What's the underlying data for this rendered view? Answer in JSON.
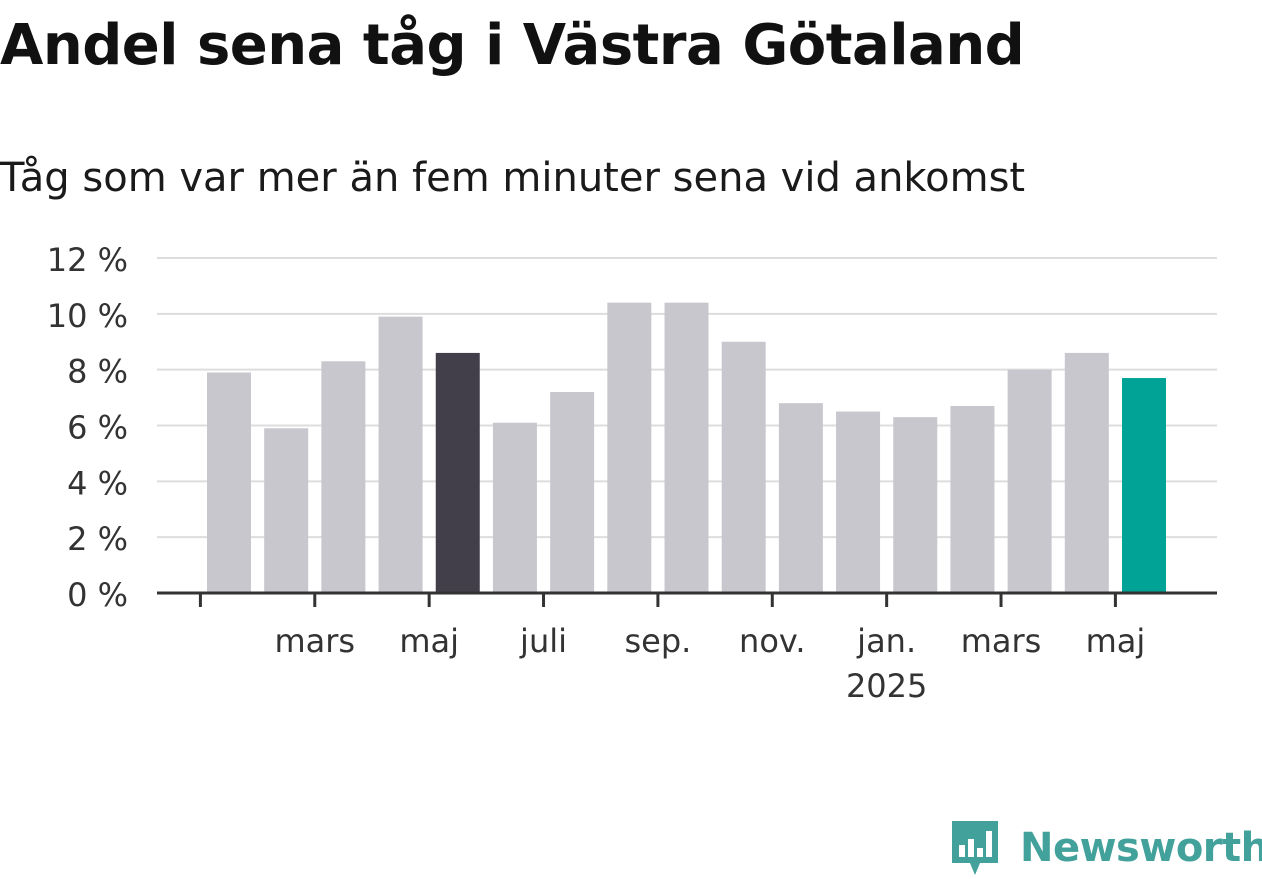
{
  "title": "Andel sena tåg i Västra Götaland",
  "subtitle": "Tåg som var mer än fem minuter sena vid ankomst",
  "brand": {
    "name": "Newsworthy",
    "logo_icon": "newsworthy-bar-chart-icon",
    "color": "#42a19a"
  },
  "chart_data": {
    "type": "bar",
    "y_unit": "%",
    "ylim": [
      0,
      12
    ],
    "yticks": [
      0,
      2,
      4,
      6,
      8,
      10,
      12
    ],
    "ytick_labels": [
      "0 %",
      "2 %",
      "4 %",
      "6 %",
      "8 %",
      "10 %",
      "12 %"
    ],
    "grid": true,
    "legend": "none",
    "xtick_labels": [
      {
        "after_bar": 1,
        "label": "mars",
        "sublabel": ""
      },
      {
        "after_bar": 3,
        "label": "maj",
        "sublabel": ""
      },
      {
        "after_bar": 5,
        "label": "juli",
        "sublabel": ""
      },
      {
        "after_bar": 7,
        "label": "sep.",
        "sublabel": ""
      },
      {
        "after_bar": 9,
        "label": "nov.",
        "sublabel": ""
      },
      {
        "after_bar": 11,
        "label": "jan.",
        "sublabel": "2025"
      },
      {
        "after_bar": 13,
        "label": "mars",
        "sublabel": ""
      },
      {
        "after_bar": 15,
        "label": "maj",
        "sublabel": ""
      }
    ],
    "values": [
      7.9,
      5.9,
      8.3,
      9.9,
      8.6,
      6.1,
      7.2,
      10.4,
      10.4,
      9.0,
      6.8,
      6.5,
      6.3,
      6.7,
      8.0,
      8.6,
      7.7
    ],
    "bar_colors": [
      "#c8c7cd",
      "#c8c7cd",
      "#c8c7cd",
      "#c8c7cd",
      "#423f4b",
      "#c8c7cd",
      "#c8c7cd",
      "#c8c7cd",
      "#c8c7cd",
      "#c8c7cd",
      "#c8c7cd",
      "#c8c7cd",
      "#c8c7cd",
      "#c8c7cd",
      "#c8c7cd",
      "#c8c7cd",
      "#00a396"
    ],
    "colors": {
      "default": "#c8c7cd",
      "highlight_previous_year": "#423f4b",
      "highlight_latest": "#00a396",
      "grid": "#dddddd",
      "axis": "#333333"
    }
  }
}
